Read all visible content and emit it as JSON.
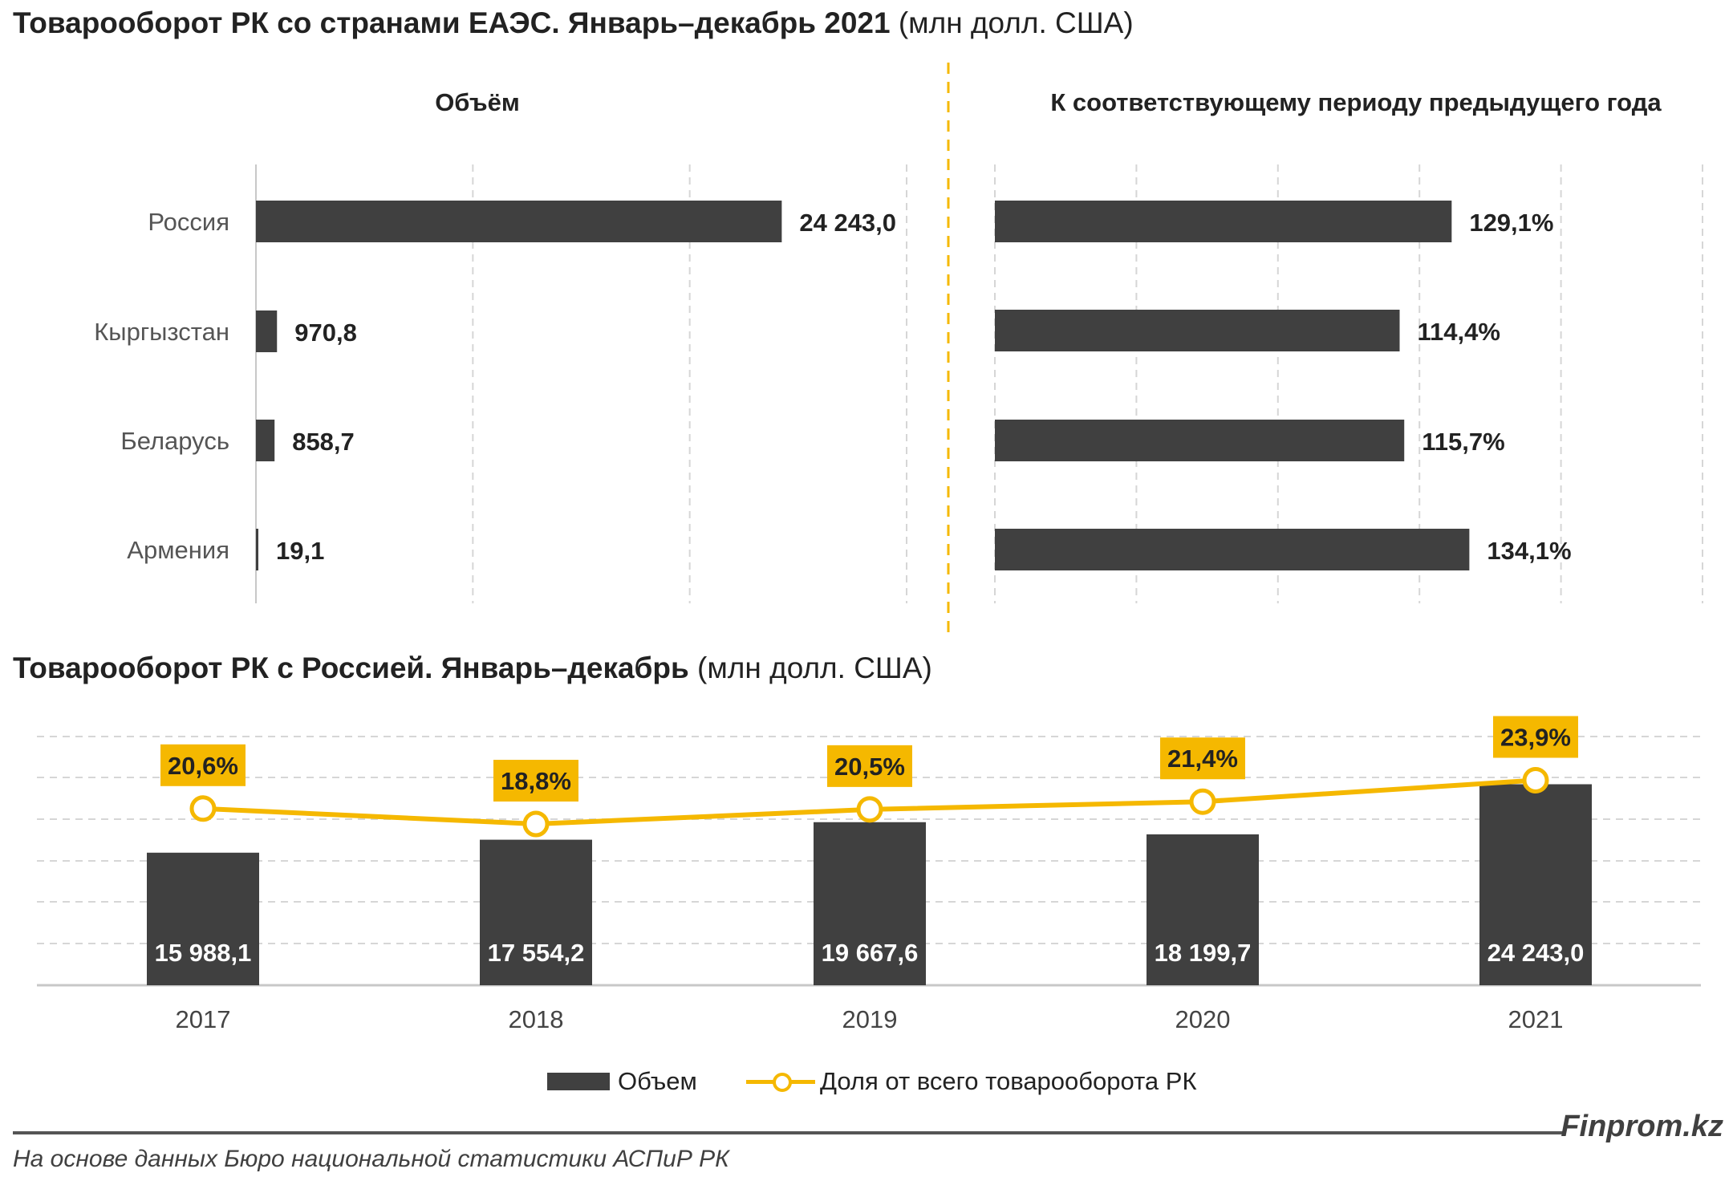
{
  "colors": {
    "bar": "#404040",
    "accent": "#F5B800",
    "grid": "#d6d6d6",
    "divider": "#F5B800"
  },
  "header": {
    "title_bold": "Товарооборот РК со странами ЕАЭС. Январь–декабрь 2021",
    "title_sub": "(млн долл. США)"
  },
  "section2": {
    "title_bold": "Товарооборот РК с Россией. Январь–декабрь",
    "title_sub": "(млн долл. США)"
  },
  "legend": {
    "volume": "Объем",
    "share": "Доля от всего товарооборота РК"
  },
  "footer": {
    "brand": "Finprom.kz",
    "source": "На основе данных Бюро национальной статистики АСПиР РК"
  },
  "chart_data": [
    {
      "type": "bar",
      "orientation": "horizontal",
      "title": "Объём",
      "categories": [
        "Россия",
        "Кыргызстан",
        "Беларусь",
        "Армения"
      ],
      "values": [
        24243.0,
        970.8,
        858.7,
        19.1
      ],
      "labels": [
        "24 243,0",
        "970,8",
        "858,7",
        "19,1"
      ],
      "xlim": [
        0,
        30000
      ],
      "grid": true
    },
    {
      "type": "bar",
      "orientation": "horizontal",
      "title": "К соответствующему периоду предыдущего года",
      "categories": [
        "Россия",
        "Кыргызстан",
        "Беларусь",
        "Армения"
      ],
      "values": [
        129.1,
        114.4,
        115.7,
        134.1
      ],
      "labels": [
        "129,1%",
        "114,4%",
        "115,7%",
        "134,1%"
      ],
      "xlim": [
        0,
        200
      ],
      "grid": true
    },
    {
      "type": "bar",
      "categories": [
        "2017",
        "2018",
        "2019",
        "2020",
        "2021"
      ],
      "series": [
        {
          "name": "Объем",
          "type": "bar",
          "values": [
            15988.1,
            17554.2,
            19667.6,
            18199.7,
            24243.0
          ],
          "labels": [
            "15 988,1",
            "17 554,2",
            "19 667,6",
            "18 199,7",
            "24 243,0"
          ]
        },
        {
          "name": "Доля от всего товарооборота РК",
          "type": "line",
          "values": [
            20.6,
            18.8,
            20.5,
            21.4,
            23.9
          ],
          "labels": [
            "20,6%",
            "18,8%",
            "20,5%",
            "21,4%",
            "23,9%"
          ]
        }
      ],
      "ylim": [
        0,
        30000
      ],
      "y2lim": [
        0,
        29
      ],
      "grid": true,
      "legend": "bottom"
    }
  ]
}
